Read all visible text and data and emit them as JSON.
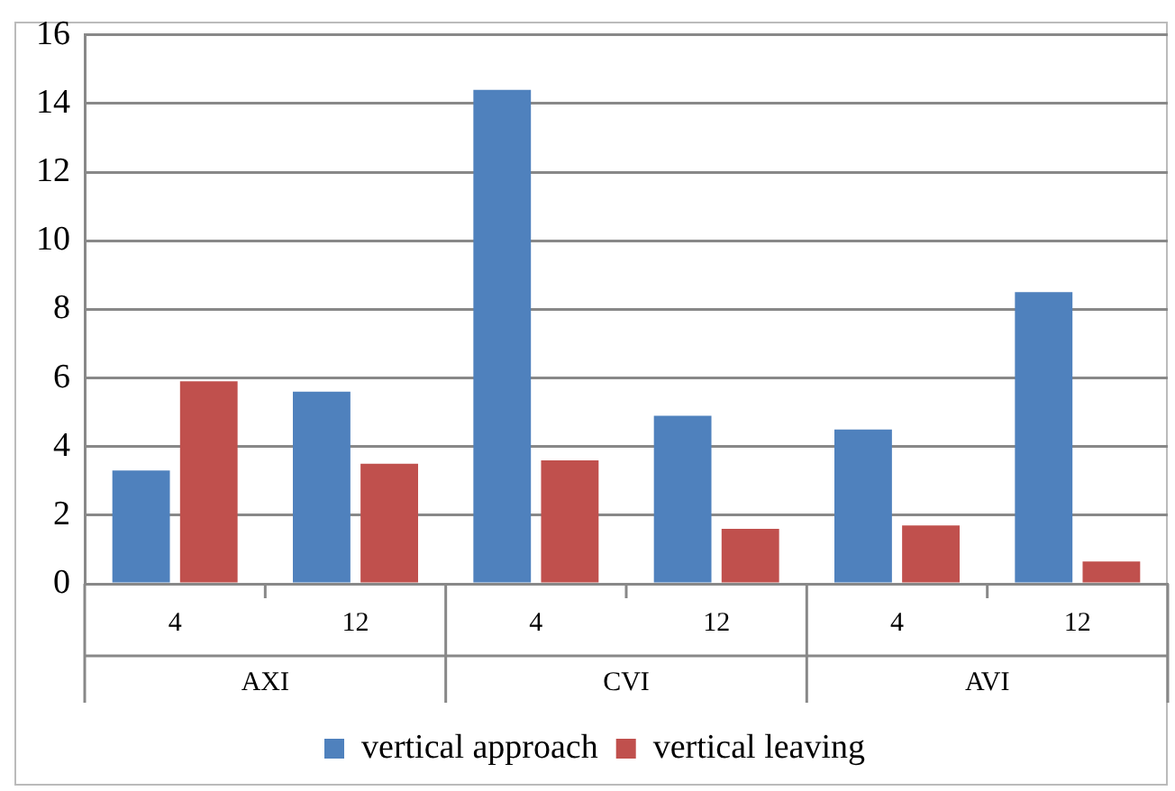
{
  "chart_data": {
    "type": "bar",
    "categories": [
      "4",
      "12",
      "4",
      "12",
      "4",
      "12"
    ],
    "annotations": [
      "AXI",
      "CVI",
      "AVI"
    ],
    "series": [
      {
        "name": "vertical approach",
        "color": "#4f81bd",
        "values": [
          3.3,
          5.6,
          14.4,
          4.9,
          4.5,
          8.5
        ]
      },
      {
        "name": "vertical leaving",
        "color": "#c0504d",
        "values": [
          5.9,
          3.5,
          3.6,
          1.6,
          1.7,
          0.65
        ]
      }
    ],
    "ylim": [
      0,
      16
    ],
    "yticks": [
      0,
      2,
      4,
      6,
      8,
      10,
      12,
      14,
      16
    ],
    "grid": "y",
    "legend": "bottom"
  }
}
